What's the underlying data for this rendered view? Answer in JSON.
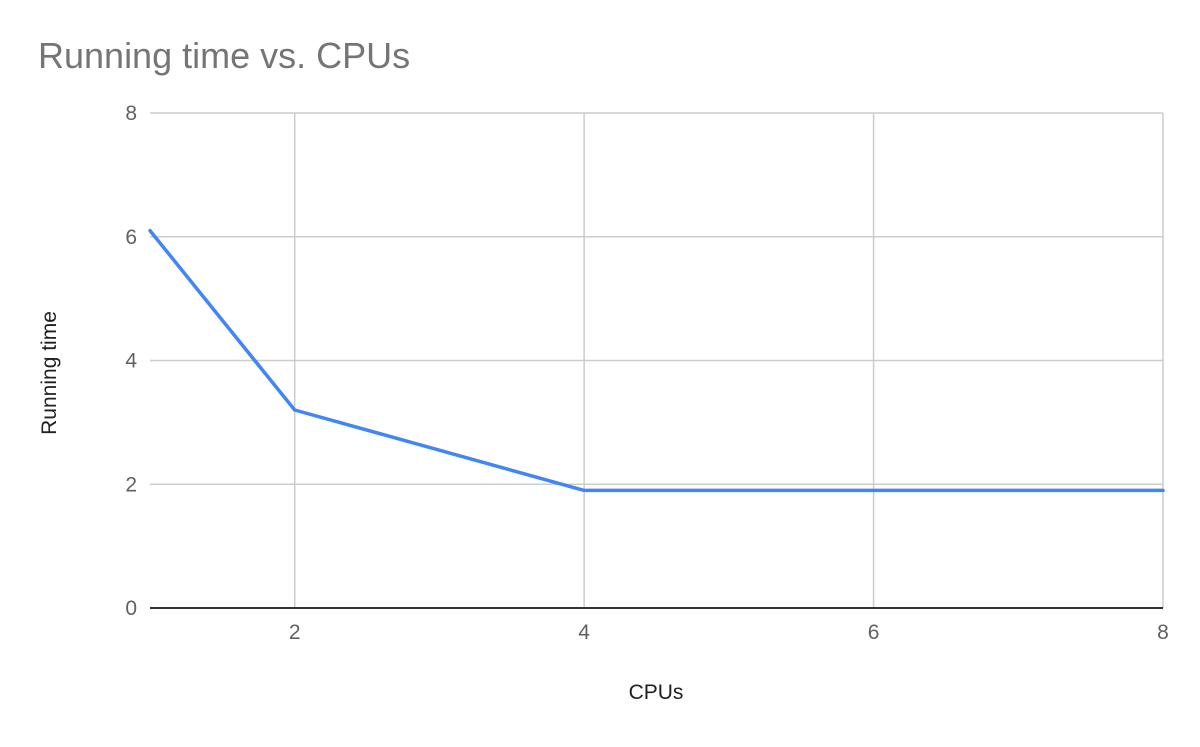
{
  "chart_data": {
    "type": "line",
    "title": "Running time vs. CPUs",
    "xlabel": "CPUs",
    "ylabel": "Running time",
    "xlim": [
      1,
      8
    ],
    "ylim": [
      0,
      8
    ],
    "xticks": [
      2,
      4,
      6,
      8
    ],
    "yticks": [
      0,
      2,
      4,
      6,
      8
    ],
    "grid": true,
    "legend": "none",
    "series": [
      {
        "color": "#4285f4",
        "x": [
          1,
          2,
          4,
          8
        ],
        "y": [
          6.1,
          3.2,
          1.9,
          1.9
        ]
      }
    ]
  }
}
